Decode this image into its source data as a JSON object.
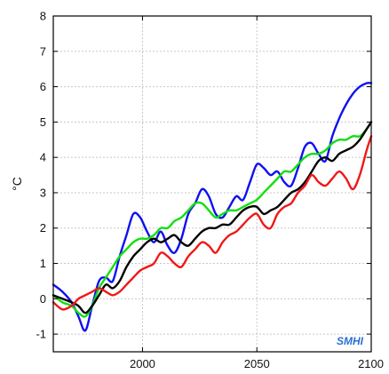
{
  "chart_data": {
    "type": "line",
    "title": "",
    "xlabel": "",
    "ylabel": "°C",
    "xlim": [
      1961,
      2100
    ],
    "ylim": [
      -1.5,
      8
    ],
    "x_ticks": [
      2000,
      2050,
      2100
    ],
    "y_ticks": [
      -1,
      0,
      1,
      2,
      3,
      4,
      5,
      6,
      7,
      8
    ],
    "grid": true,
    "logo": "SMHI",
    "colors": {
      "blue": "#1010f0",
      "green": "#10e010",
      "black": "#000000",
      "red": "#f01818",
      "grid": "#c8c8c8",
      "axis": "#000000",
      "logo": "#2a6fd0"
    },
    "series": [
      {
        "color": "blue",
        "x": [
          1961,
          1965,
          1969,
          1972,
          1975,
          1978,
          1981,
          1984,
          1987,
          1990,
          1993,
          1996,
          1999,
          2002,
          2005,
          2008,
          2011,
          2014,
          2017,
          2020,
          2023,
          2026,
          2029,
          2032,
          2035,
          2038,
          2041,
          2044,
          2047,
          2050,
          2053,
          2056,
          2059,
          2062,
          2065,
          2068,
          2071,
          2074,
          2077,
          2080,
          2083,
          2086,
          2089,
          2092,
          2095,
          2098,
          2100
        ],
        "y": [
          0.4,
          0.2,
          -0.1,
          -0.5,
          -0.9,
          -0.2,
          0.5,
          0.6,
          0.5,
          1.2,
          1.8,
          2.4,
          2.3,
          1.9,
          1.6,
          1.9,
          1.5,
          1.3,
          1.7,
          2.4,
          2.7,
          3.1,
          2.9,
          2.4,
          2.3,
          2.6,
          2.9,
          2.8,
          3.3,
          3.8,
          3.7,
          3.5,
          3.6,
          3.3,
          3.2,
          3.7,
          4.3,
          4.4,
          4.1,
          3.9,
          4.6,
          5.1,
          5.5,
          5.8,
          6.0,
          6.1,
          6.1
        ]
      },
      {
        "color": "green",
        "x": [
          1961,
          1965,
          1969,
          1972,
          1975,
          1978,
          1981,
          1984,
          1987,
          1990,
          1993,
          1996,
          1999,
          2002,
          2005,
          2008,
          2011,
          2014,
          2017,
          2020,
          2023,
          2026,
          2029,
          2032,
          2035,
          2038,
          2041,
          2044,
          2047,
          2050,
          2053,
          2056,
          2059,
          2062,
          2065,
          2068,
          2071,
          2074,
          2077,
          2080,
          2083,
          2086,
          2089,
          2092,
          2095,
          2098,
          2100
        ],
        "y": [
          0.1,
          -0.1,
          -0.2,
          -0.4,
          -0.5,
          -0.2,
          0.3,
          0.6,
          0.9,
          1.2,
          1.4,
          1.6,
          1.7,
          1.7,
          1.8,
          2.0,
          2.0,
          2.2,
          2.3,
          2.5,
          2.7,
          2.7,
          2.5,
          2.3,
          2.4,
          2.5,
          2.5,
          2.6,
          2.7,
          2.8,
          3.0,
          3.2,
          3.4,
          3.6,
          3.6,
          3.8,
          4.0,
          4.1,
          4.1,
          4.2,
          4.4,
          4.5,
          4.5,
          4.6,
          4.6,
          4.8,
          5.0
        ]
      },
      {
        "color": "black",
        "x": [
          1961,
          1965,
          1969,
          1972,
          1975,
          1978,
          1981,
          1984,
          1987,
          1990,
          1993,
          1996,
          1999,
          2002,
          2005,
          2008,
          2011,
          2014,
          2017,
          2020,
          2023,
          2026,
          2029,
          2032,
          2035,
          2038,
          2041,
          2044,
          2047,
          2050,
          2053,
          2056,
          2059,
          2062,
          2065,
          2068,
          2071,
          2074,
          2077,
          2080,
          2083,
          2086,
          2089,
          2092,
          2095,
          2098,
          2100
        ],
        "y": [
          0.1,
          0.0,
          -0.1,
          -0.2,
          -0.4,
          -0.2,
          0.1,
          0.4,
          0.3,
          0.5,
          0.9,
          1.2,
          1.4,
          1.6,
          1.7,
          1.6,
          1.7,
          1.8,
          1.6,
          1.5,
          1.7,
          1.9,
          2.0,
          2.0,
          2.1,
          2.1,
          2.3,
          2.5,
          2.6,
          2.6,
          2.4,
          2.5,
          2.6,
          2.8,
          3.0,
          3.1,
          3.3,
          3.6,
          3.9,
          4.0,
          3.9,
          4.1,
          4.2,
          4.3,
          4.5,
          4.8,
          5.0
        ]
      },
      {
        "color": "red",
        "x": [
          1961,
          1965,
          1969,
          1972,
          1975,
          1978,
          1981,
          1984,
          1987,
          1990,
          1993,
          1996,
          1999,
          2002,
          2005,
          2008,
          2011,
          2014,
          2017,
          2020,
          2023,
          2026,
          2029,
          2032,
          2035,
          2038,
          2041,
          2044,
          2047,
          2050,
          2053,
          2056,
          2059,
          2062,
          2065,
          2068,
          2071,
          2074,
          2077,
          2080,
          2083,
          2086,
          2089,
          2092,
          2095,
          2098,
          2100
        ],
        "y": [
          -0.1,
          -0.3,
          -0.2,
          0.0,
          0.1,
          0.2,
          0.3,
          0.2,
          0.1,
          0.2,
          0.4,
          0.6,
          0.8,
          0.9,
          1.0,
          1.3,
          1.2,
          1.0,
          0.9,
          1.2,
          1.4,
          1.6,
          1.5,
          1.3,
          1.6,
          1.8,
          1.9,
          2.1,
          2.3,
          2.4,
          2.1,
          2.0,
          2.4,
          2.6,
          2.7,
          3.0,
          3.2,
          3.5,
          3.3,
          3.2,
          3.4,
          3.6,
          3.4,
          3.1,
          3.5,
          4.2,
          4.6
        ]
      }
    ]
  }
}
